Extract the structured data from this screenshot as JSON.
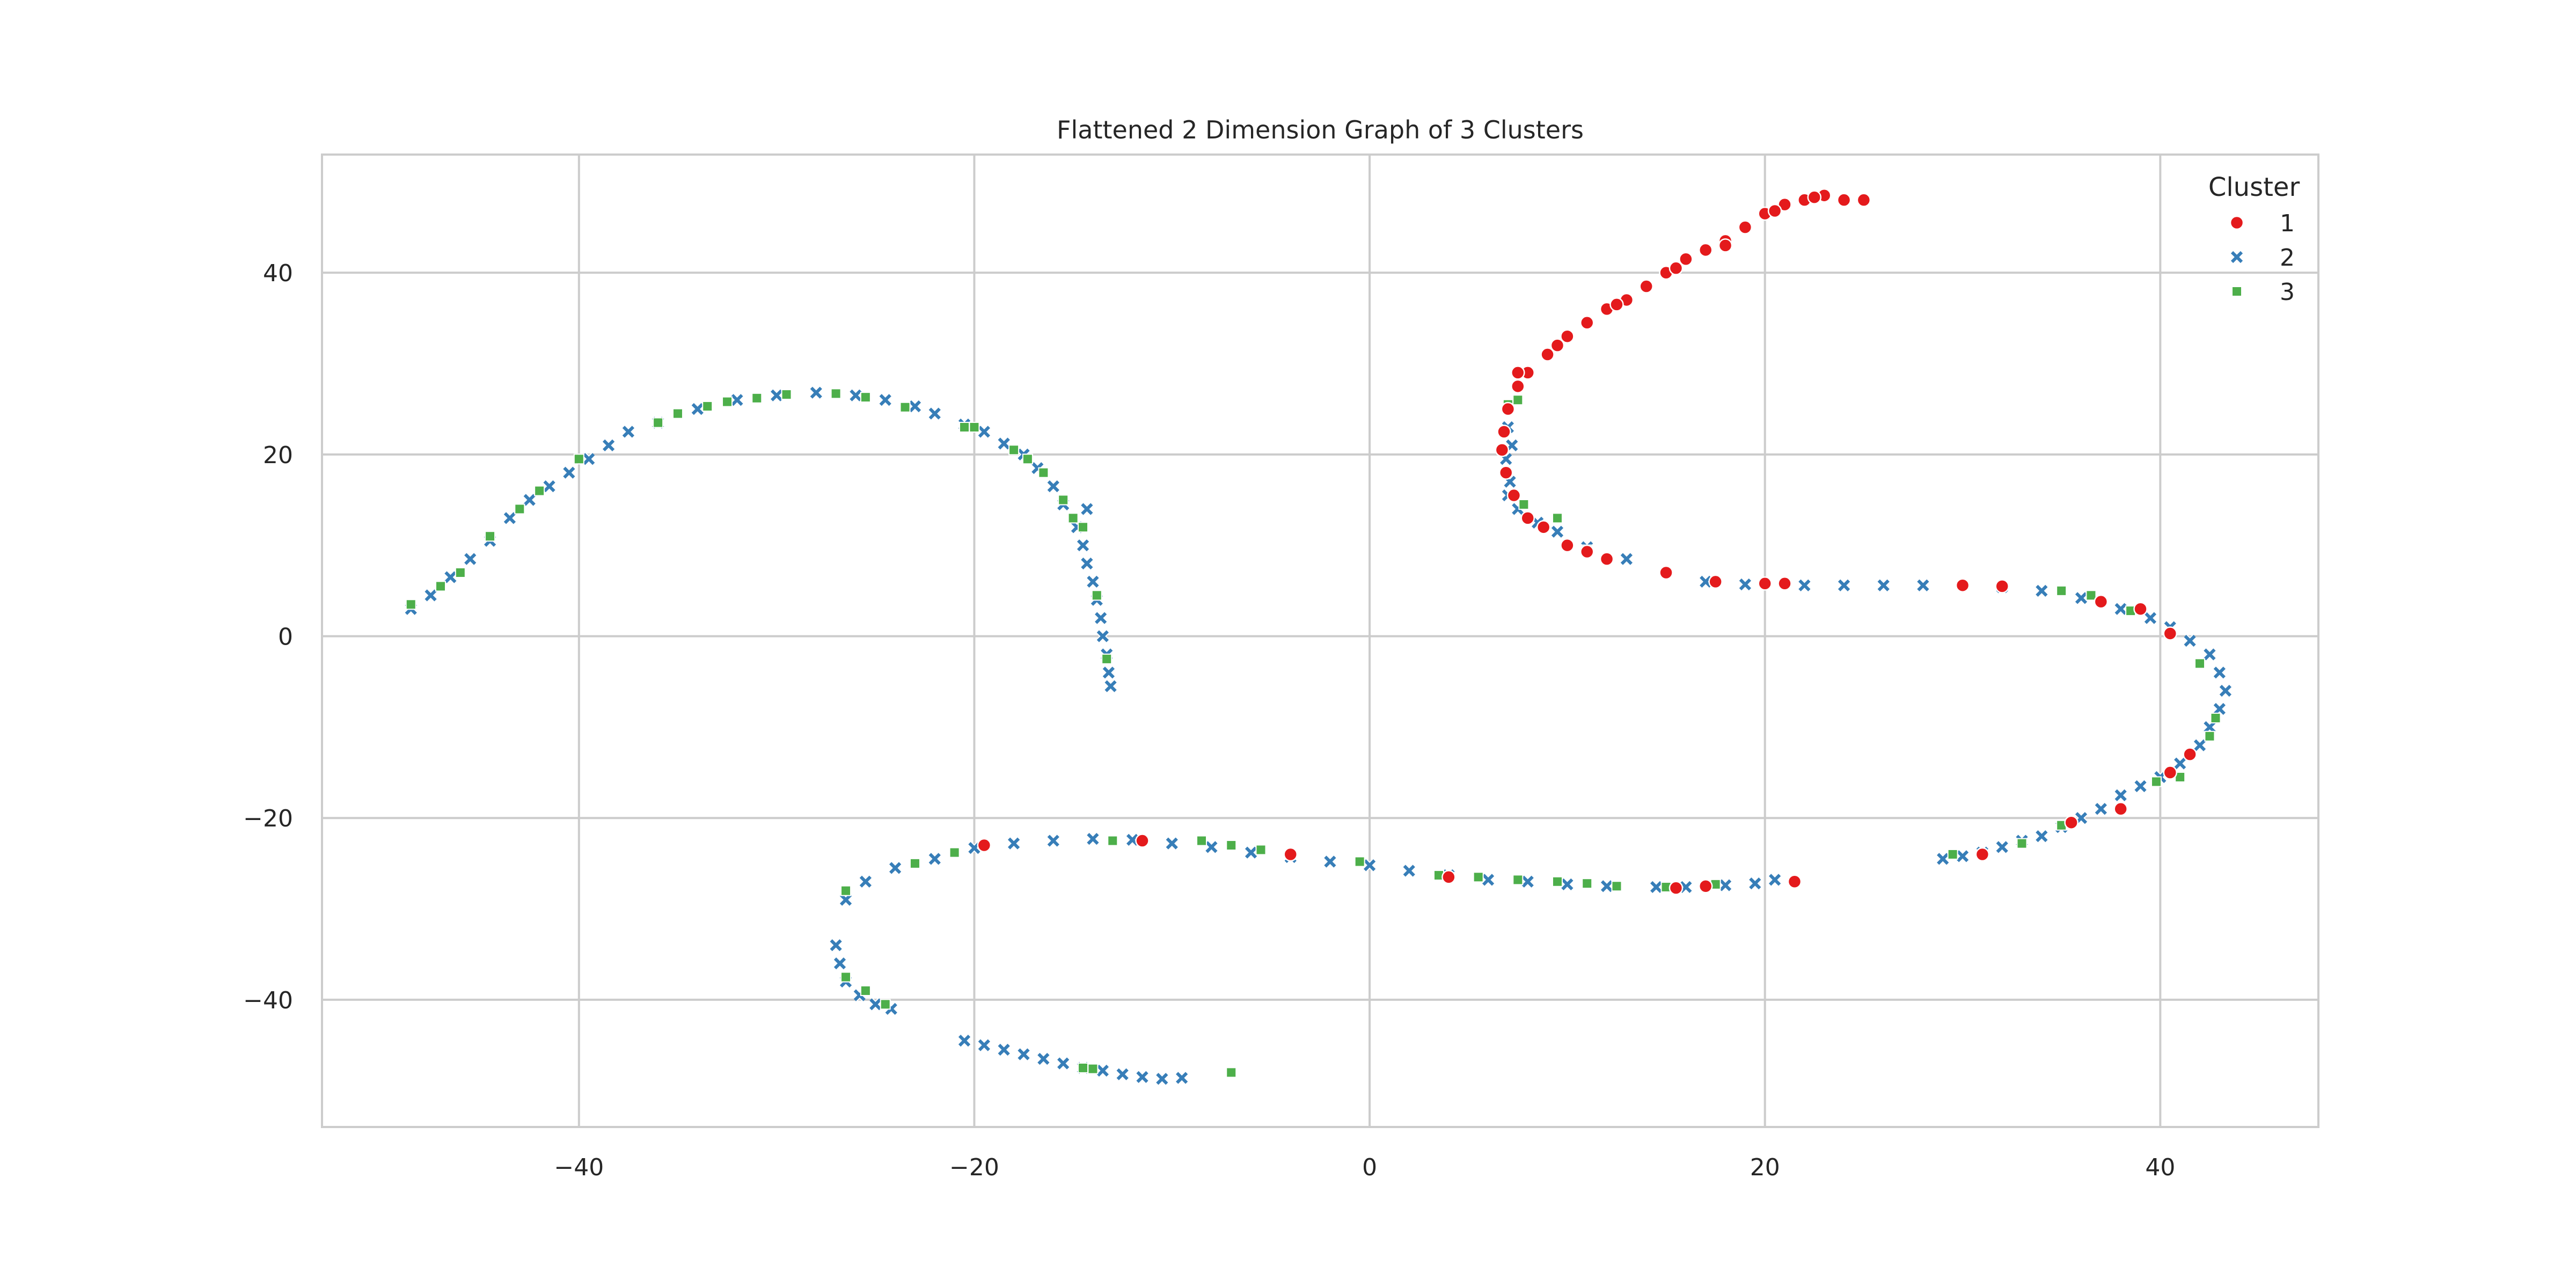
{
  "chart_data": {
    "type": "scatter",
    "title": "Flattened 2 Dimension Graph of 3 Clusters",
    "xlabel": "",
    "ylabel": "",
    "xlim": [
      -53,
      48
    ],
    "ylim": [
      -54,
      53
    ],
    "x_ticks": [
      -40,
      -20,
      0,
      20,
      40
    ],
    "y_ticks": [
      40,
      20,
      0,
      -20,
      -40
    ],
    "x_tick_labels": [
      "−40",
      "−20",
      "0",
      "20",
      "40"
    ],
    "y_tick_labels": [
      "40",
      "20",
      "0",
      "−20",
      "−40"
    ],
    "grid": true,
    "legend_title": "Cluster",
    "legend_position": "top-right",
    "series": [
      {
        "name": "1",
        "marker": "circle",
        "color": "#e41a1c",
        "points": [
          [
            25,
            48
          ],
          [
            24,
            48
          ],
          [
            23,
            48.5
          ],
          [
            22,
            48
          ],
          [
            21,
            47.5
          ],
          [
            20,
            46.5
          ],
          [
            19,
            45
          ],
          [
            18,
            43.5
          ],
          [
            17,
            42.5
          ],
          [
            16,
            41.5
          ],
          [
            15,
            40
          ],
          [
            14,
            38.5
          ],
          [
            13,
            37
          ],
          [
            12,
            36
          ],
          [
            11,
            34.5
          ],
          [
            10,
            33
          ],
          [
            9,
            31
          ],
          [
            8,
            29
          ],
          [
            7.5,
            27.5
          ],
          [
            7,
            25
          ],
          [
            6.8,
            22.5
          ],
          [
            6.7,
            20.5
          ],
          [
            6.9,
            18
          ],
          [
            7.3,
            15.5
          ],
          [
            8,
            13
          ],
          [
            8.8,
            12
          ],
          [
            10,
            10
          ],
          [
            11,
            9.3
          ],
          [
            12,
            8.5
          ],
          [
            15,
            7
          ],
          [
            17.5,
            6
          ],
          [
            20,
            5.8
          ],
          [
            21,
            5.8
          ],
          [
            30,
            5.6
          ],
          [
            32,
            5.5
          ],
          [
            37,
            3.8
          ],
          [
            39,
            3
          ],
          [
            40.5,
            0.3
          ],
          [
            41.5,
            -13
          ],
          [
            40.5,
            -15
          ],
          [
            38,
            -19
          ],
          [
            35.5,
            -20.5
          ],
          [
            31,
            -24
          ],
          [
            21.5,
            -27
          ],
          [
            17,
            -27.5
          ],
          [
            15.5,
            -27.7
          ],
          [
            4,
            -26.5
          ],
          [
            -4,
            -24
          ],
          [
            -11.5,
            -22.5
          ],
          [
            -19.5,
            -23
          ],
          [
            7.5,
            29
          ],
          [
            9.5,
            32
          ],
          [
            12.5,
            36.5
          ],
          [
            15.5,
            40.5
          ],
          [
            18,
            43
          ],
          [
            22.5,
            48.3
          ],
          [
            20.5,
            46.8
          ]
        ]
      },
      {
        "name": "2",
        "marker": "x",
        "color": "#377eb8",
        "points": [
          [
            -48.5,
            3
          ],
          [
            -47.5,
            4.5
          ],
          [
            -46.5,
            6.5
          ],
          [
            -45.5,
            8.5
          ],
          [
            -44.5,
            10.5
          ],
          [
            -43.5,
            13
          ],
          [
            -42.5,
            15
          ],
          [
            -41.5,
            16.5
          ],
          [
            -40.5,
            18
          ],
          [
            -39.5,
            19.5
          ],
          [
            -38.5,
            21
          ],
          [
            -37.5,
            22.5
          ],
          [
            -36,
            23.5
          ],
          [
            -34,
            25
          ],
          [
            -32,
            26
          ],
          [
            -30,
            26.5
          ],
          [
            -28,
            26.8
          ],
          [
            -26,
            26.5
          ],
          [
            -24.5,
            26
          ],
          [
            -23,
            25.3
          ],
          [
            -22,
            24.5
          ],
          [
            -20.5,
            23.3
          ],
          [
            -19.5,
            22.5
          ],
          [
            -18.5,
            21.2
          ],
          [
            -17.5,
            20
          ],
          [
            -16.8,
            18.5
          ],
          [
            -16,
            16.5
          ],
          [
            -15.5,
            14.5
          ],
          [
            -14.8,
            12
          ],
          [
            -14.3,
            14
          ],
          [
            -14.5,
            10
          ],
          [
            -14.3,
            8
          ],
          [
            -14,
            6
          ],
          [
            -13.8,
            4
          ],
          [
            -13.6,
            2
          ],
          [
            -13.5,
            0
          ],
          [
            -13.3,
            -2
          ],
          [
            -13.2,
            -4
          ],
          [
            -13.1,
            -5.5
          ],
          [
            -26.5,
            -29
          ],
          [
            -25.5,
            -27
          ],
          [
            -24,
            -25.5
          ],
          [
            -22,
            -24.5
          ],
          [
            -20,
            -23.3
          ],
          [
            -18,
            -22.8
          ],
          [
            -16,
            -22.5
          ],
          [
            -14,
            -22.3
          ],
          [
            -12,
            -22.4
          ],
          [
            -10,
            -22.8
          ],
          [
            -8,
            -23.2
          ],
          [
            -6,
            -23.8
          ],
          [
            -4,
            -24.3
          ],
          [
            -2,
            -24.8
          ],
          [
            0,
            -25.2
          ],
          [
            2,
            -25.8
          ],
          [
            4,
            -26.3
          ],
          [
            6,
            -26.8
          ],
          [
            8,
            -27
          ],
          [
            10,
            -27.3
          ],
          [
            12,
            -27.5
          ],
          [
            14.5,
            -27.6
          ],
          [
            16,
            -27.6
          ],
          [
            18,
            -27.4
          ],
          [
            19.5,
            -27.2
          ],
          [
            20.5,
            -26.8
          ],
          [
            -27,
            -34
          ],
          [
            -26.8,
            -36
          ],
          [
            -26.5,
            -38
          ],
          [
            -25.8,
            -39.5
          ],
          [
            -25,
            -40.5
          ],
          [
            -24.2,
            -41
          ],
          [
            -20.5,
            -44.5
          ],
          [
            -19.5,
            -45
          ],
          [
            -18.5,
            -45.5
          ],
          [
            -17.5,
            -46
          ],
          [
            -16.5,
            -46.5
          ],
          [
            -15.5,
            -47
          ],
          [
            -14.5,
            -47.5
          ],
          [
            -13.5,
            -47.8
          ],
          [
            -12.5,
            -48.2
          ],
          [
            -11.5,
            -48.5
          ],
          [
            -10.5,
            -48.7
          ],
          [
            -9.5,
            -48.6
          ],
          [
            7,
            15.5
          ],
          [
            7.5,
            14
          ],
          [
            8.5,
            12.5
          ],
          [
            9.5,
            11.5
          ],
          [
            11,
            9.8
          ],
          [
            13,
            8.5
          ],
          [
            15,
            7
          ],
          [
            17,
            6
          ],
          [
            19,
            5.7
          ],
          [
            22,
            5.6
          ],
          [
            24,
            5.6
          ],
          [
            26,
            5.6
          ],
          [
            28,
            5.6
          ],
          [
            30,
            5.6
          ],
          [
            32,
            5.4
          ],
          [
            34,
            5
          ],
          [
            36,
            4.2
          ],
          [
            38,
            3
          ],
          [
            39.5,
            2
          ],
          [
            40.5,
            1
          ],
          [
            41.5,
            -0.5
          ],
          [
            42.5,
            -2
          ],
          [
            43,
            -4
          ],
          [
            43.3,
            -6
          ],
          [
            43,
            -8
          ],
          [
            42.5,
            -10
          ],
          [
            42,
            -12
          ],
          [
            41,
            -14
          ],
          [
            40,
            -15.5
          ],
          [
            39,
            -16.5
          ],
          [
            38,
            -17.5
          ],
          [
            37,
            -19
          ],
          [
            36,
            -20
          ],
          [
            35,
            -21
          ],
          [
            34,
            -22
          ],
          [
            33,
            -22.5
          ],
          [
            32,
            -23.2
          ],
          [
            31,
            -23.8
          ],
          [
            30,
            -24.2
          ],
          [
            29,
            -24.5
          ],
          [
            7,
            23
          ],
          [
            7.2,
            21
          ],
          [
            6.9,
            19.5
          ],
          [
            7.1,
            17
          ]
        ]
      },
      {
        "name": "3",
        "marker": "square",
        "color": "#4daf4a",
        "points": [
          [
            -48.5,
            3.5
          ],
          [
            -47,
            5.5
          ],
          [
            -46,
            7
          ],
          [
            -44.5,
            11
          ],
          [
            -43,
            14
          ],
          [
            -42,
            16
          ],
          [
            -40,
            19.5
          ],
          [
            -36,
            23.5
          ],
          [
            -35,
            24.5
          ],
          [
            -33.5,
            25.3
          ],
          [
            -32.5,
            25.8
          ],
          [
            -31,
            26.2
          ],
          [
            -29.5,
            26.6
          ],
          [
            -27,
            26.7
          ],
          [
            -25.5,
            26.3
          ],
          [
            -23.5,
            25.2
          ],
          [
            -20.5,
            23
          ],
          [
            -20,
            23
          ],
          [
            -18,
            20.5
          ],
          [
            -17.3,
            19.5
          ],
          [
            -16.5,
            18
          ],
          [
            -15.5,
            15
          ],
          [
            -15,
            13
          ],
          [
            -14.5,
            12
          ],
          [
            -13.8,
            4.5
          ],
          [
            -13.3,
            -2.5
          ],
          [
            -26.5,
            -28
          ],
          [
            -23,
            -25
          ],
          [
            -21,
            -23.8
          ],
          [
            -13,
            -22.5
          ],
          [
            -8.5,
            -22.5
          ],
          [
            -7,
            -23
          ],
          [
            -5.5,
            -23.5
          ],
          [
            -0.5,
            -24.8
          ],
          [
            3.5,
            -26.3
          ],
          [
            5.5,
            -26.5
          ],
          [
            7.5,
            -26.8
          ],
          [
            9.5,
            -27
          ],
          [
            11,
            -27.2
          ],
          [
            12.5,
            -27.5
          ],
          [
            15,
            -27.6
          ],
          [
            17.5,
            -27.3
          ],
          [
            -26.5,
            -37.5
          ],
          [
            -25.5,
            -39
          ],
          [
            -24.5,
            -40.5
          ],
          [
            -14.5,
            -47.5
          ],
          [
            -14,
            -47.6
          ],
          [
            -7,
            -48
          ],
          [
            7,
            25.5
          ],
          [
            7.5,
            26
          ],
          [
            7.8,
            14.5
          ],
          [
            9.5,
            13
          ],
          [
            11,
            9.5
          ],
          [
            35,
            5
          ],
          [
            36.5,
            4.5
          ],
          [
            38.5,
            2.8
          ],
          [
            42,
            -3
          ],
          [
            42.8,
            -9
          ],
          [
            42.5,
            -11
          ],
          [
            41,
            -15.5
          ],
          [
            39.8,
            -16
          ],
          [
            35,
            -20.8
          ],
          [
            33,
            -22.8
          ],
          [
            29.5,
            -24
          ]
        ]
      }
    ]
  }
}
